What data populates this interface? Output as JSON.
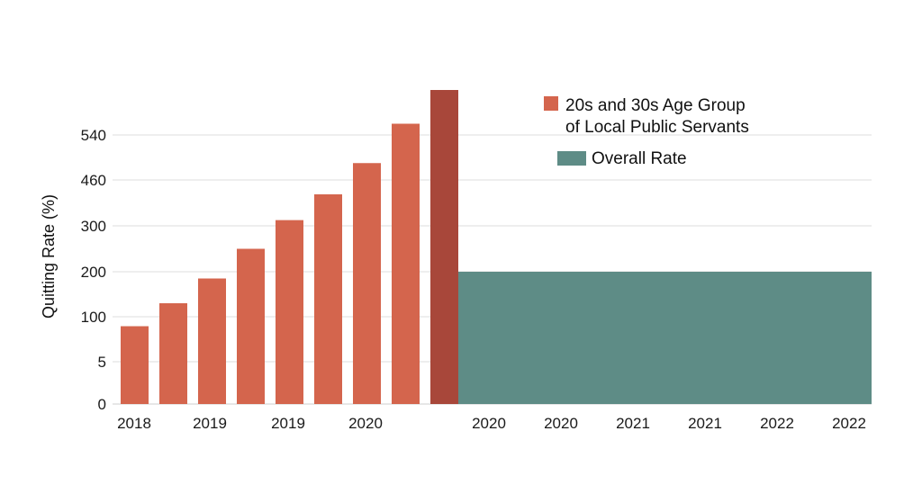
{
  "chart_data": {
    "type": "bar",
    "ylabel": "Quitting Rate (%)",
    "y_ticks": [
      "0",
      "5",
      "100",
      "200",
      "300",
      "460",
      "540"
    ],
    "grid": true,
    "legend_position": "top-right",
    "series": [
      {
        "name_lines": [
          "20s and 30s Age Group",
          "of Local Public Servants"
        ],
        "color": "#d4654d",
        "highlight_color": "#a8473a",
        "values": [
          80,
          130,
          185,
          250,
          320,
          410,
          490,
          560,
          620
        ]
      },
      {
        "name_lines": [
          "Overall Rate"
        ],
        "color": "#5e8c86",
        "value": 200
      }
    ],
    "x_tick_labels": [
      "2018",
      "2019",
      "2019",
      "2020",
      "2020",
      "2020",
      "2021",
      "2021",
      "2022",
      "2022"
    ]
  }
}
